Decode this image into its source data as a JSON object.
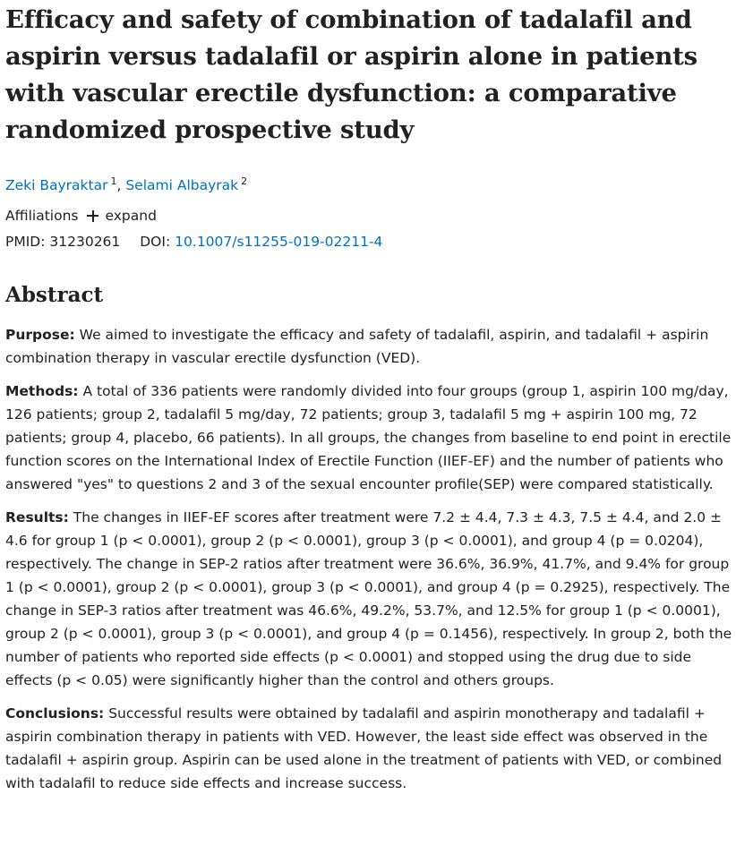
{
  "article": {
    "title": "Efficacy and safety of combination of tadalafil and aspirin versus tadalafil or aspirin alone in patients with vascular erectile dysfunction: a comparative randomized prospective study",
    "authors": [
      {
        "name": "Zeki Bayraktar",
        "affiliation": "1"
      },
      {
        "name": "Selami Albayrak",
        "affiliation": "2"
      }
    ],
    "author_separator": ",",
    "affiliations_label": "Affiliations",
    "expand_label": "expand",
    "pmid_label": "PMID:",
    "pmid": "31230261",
    "doi_label": "DOI:",
    "doi": "10.1007/s11255-019-02211-4"
  },
  "abstract": {
    "heading": "Abstract",
    "sections": [
      {
        "label": "Purpose:",
        "text": "We aimed to investigate the efficacy and safety of tadalafil, aspirin, and tadalafil + aspirin combination therapy in vascular erectile dysfunction (VED)."
      },
      {
        "label": "Methods:",
        "text": "A total of 336 patients were randomly divided into four groups (group 1, aspirin 100 mg/day, 126 patients; group 2, tadalafil 5 mg/day, 72 patients; group 3, tadalafil 5 mg + aspirin 100 mg, 72 patients; group 4, placebo, 66 patients). In all groups, the changes from baseline to end point in erectile function scores on the International Index of Erectile Function (IIEF-EF) and the number of patients who answered \"yes\" to questions 2 and 3 of the sexual encounter profile(SEP) were compared statistically."
      },
      {
        "label": "Results:",
        "text": "The changes in IIEF-EF scores after treatment were 7.2 ± 4.4, 7.3 ± 4.3, 7.5 ± 4.4, and 2.0 ± 4.6 for group 1 (p < 0.0001), group 2 (p < 0.0001), group 3 (p < 0.0001), and group 4 (p = 0.0204), respectively. The change in SEP-2 ratios after treatment were 36.6%, 36.9%, 41.7%, and 9.4% for group 1 (p < 0.0001), group 2 (p < 0.0001), group 3 (p < 0.0001), and group 4 (p = 0.2925), respectively. The change in SEP-3 ratios after treatment was 46.6%, 49.2%, 53.7%, and 12.5% for group 1 (p < 0.0001), group 2 (p < 0.0001), group 3 (p < 0.0001), and group 4 (p = 0.1456), respectively. In group 2, both the number of patients who reported side effects (p < 0.0001) and stopped using the drug due to side effects (p < 0.05) were significantly higher than the control and others groups."
      },
      {
        "label": "Conclusions:",
        "text": "Successful results were obtained by tadalafil and aspirin monotherapy and tadalafil + aspirin combination therapy in patients with VED. However, the least side effect was observed in the tadalafil + aspirin group. Aspirin can be used alone in the treatment of patients with VED, or combined with tadalafil to reduce side effects and increase success."
      }
    ]
  },
  "colors": {
    "link": "#0071bc",
    "text": "#212121",
    "background": "#ffffff"
  },
  "icons": {
    "expand": "plus-icon"
  }
}
